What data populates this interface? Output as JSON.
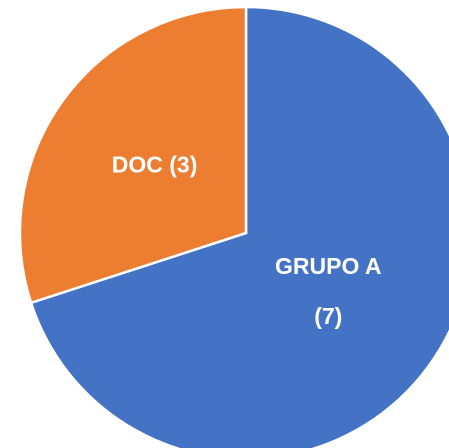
{
  "chart_data": {
    "type": "pie",
    "categories": [
      "GRUPO A",
      "DOC"
    ],
    "values": [
      7,
      3
    ],
    "value_labels": [
      "(7)",
      "(3)"
    ],
    "colors": [
      "#4472c4",
      "#ed7d31"
    ]
  }
}
